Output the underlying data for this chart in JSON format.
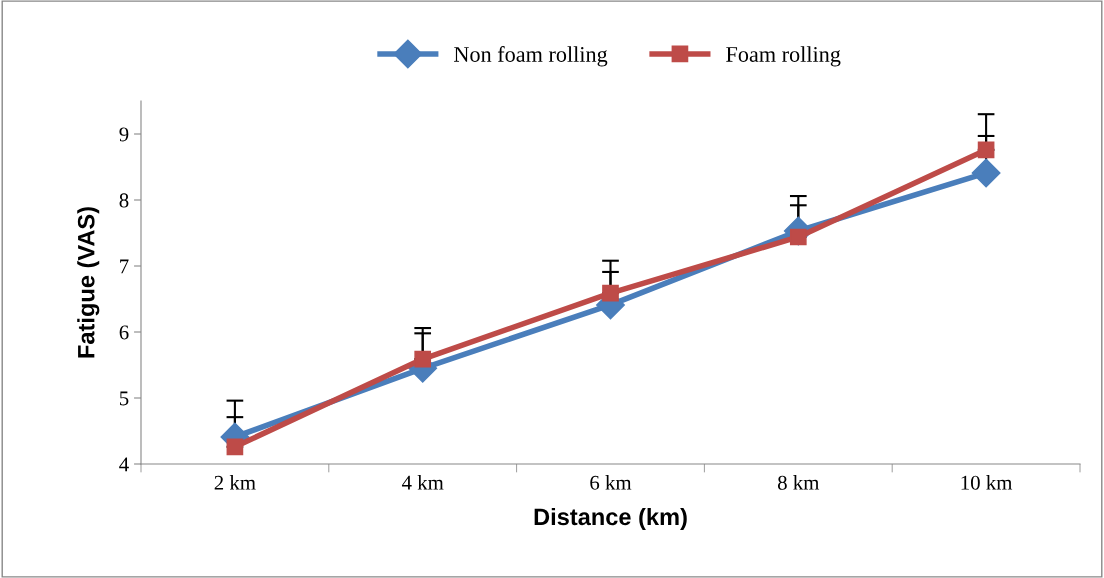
{
  "chart_data": {
    "type": "line",
    "xlabel": "Distance (km)",
    "ylabel": "Fatigue (VAS)",
    "categories": [
      "2 km",
      "4 km",
      "6 km",
      "8 km",
      "10 km"
    ],
    "series": [
      {
        "name": "Non foam rolling",
        "color": "#4a7ebb",
        "marker": "diamond",
        "values": [
          4.41,
          5.45,
          6.41,
          7.53,
          8.41
        ],
        "errors": [
          [
            4.41,
            4.71
          ],
          [
            5.45,
            5.98
          ],
          [
            6.41,
            6.91
          ],
          [
            7.53,
            7.92
          ],
          [
            8.41,
            8.97
          ]
        ]
      },
      {
        "name": "Foam rolling",
        "color": "#be4b48",
        "marker": "square",
        "values": [
          4.26,
          5.59,
          6.59,
          7.44,
          8.76
        ],
        "errors": [
          [
            4.26,
            4.96
          ],
          [
            5.59,
            6.06
          ],
          [
            6.59,
            7.08
          ],
          [
            7.44,
            8.06
          ],
          [
            8.76,
            9.3
          ]
        ]
      }
    ],
    "ylim": [
      4,
      9.5
    ],
    "yticks": [
      4,
      5,
      6,
      7,
      8,
      9
    ],
    "grid": false,
    "legend": "top",
    "line_style": "solid"
  }
}
